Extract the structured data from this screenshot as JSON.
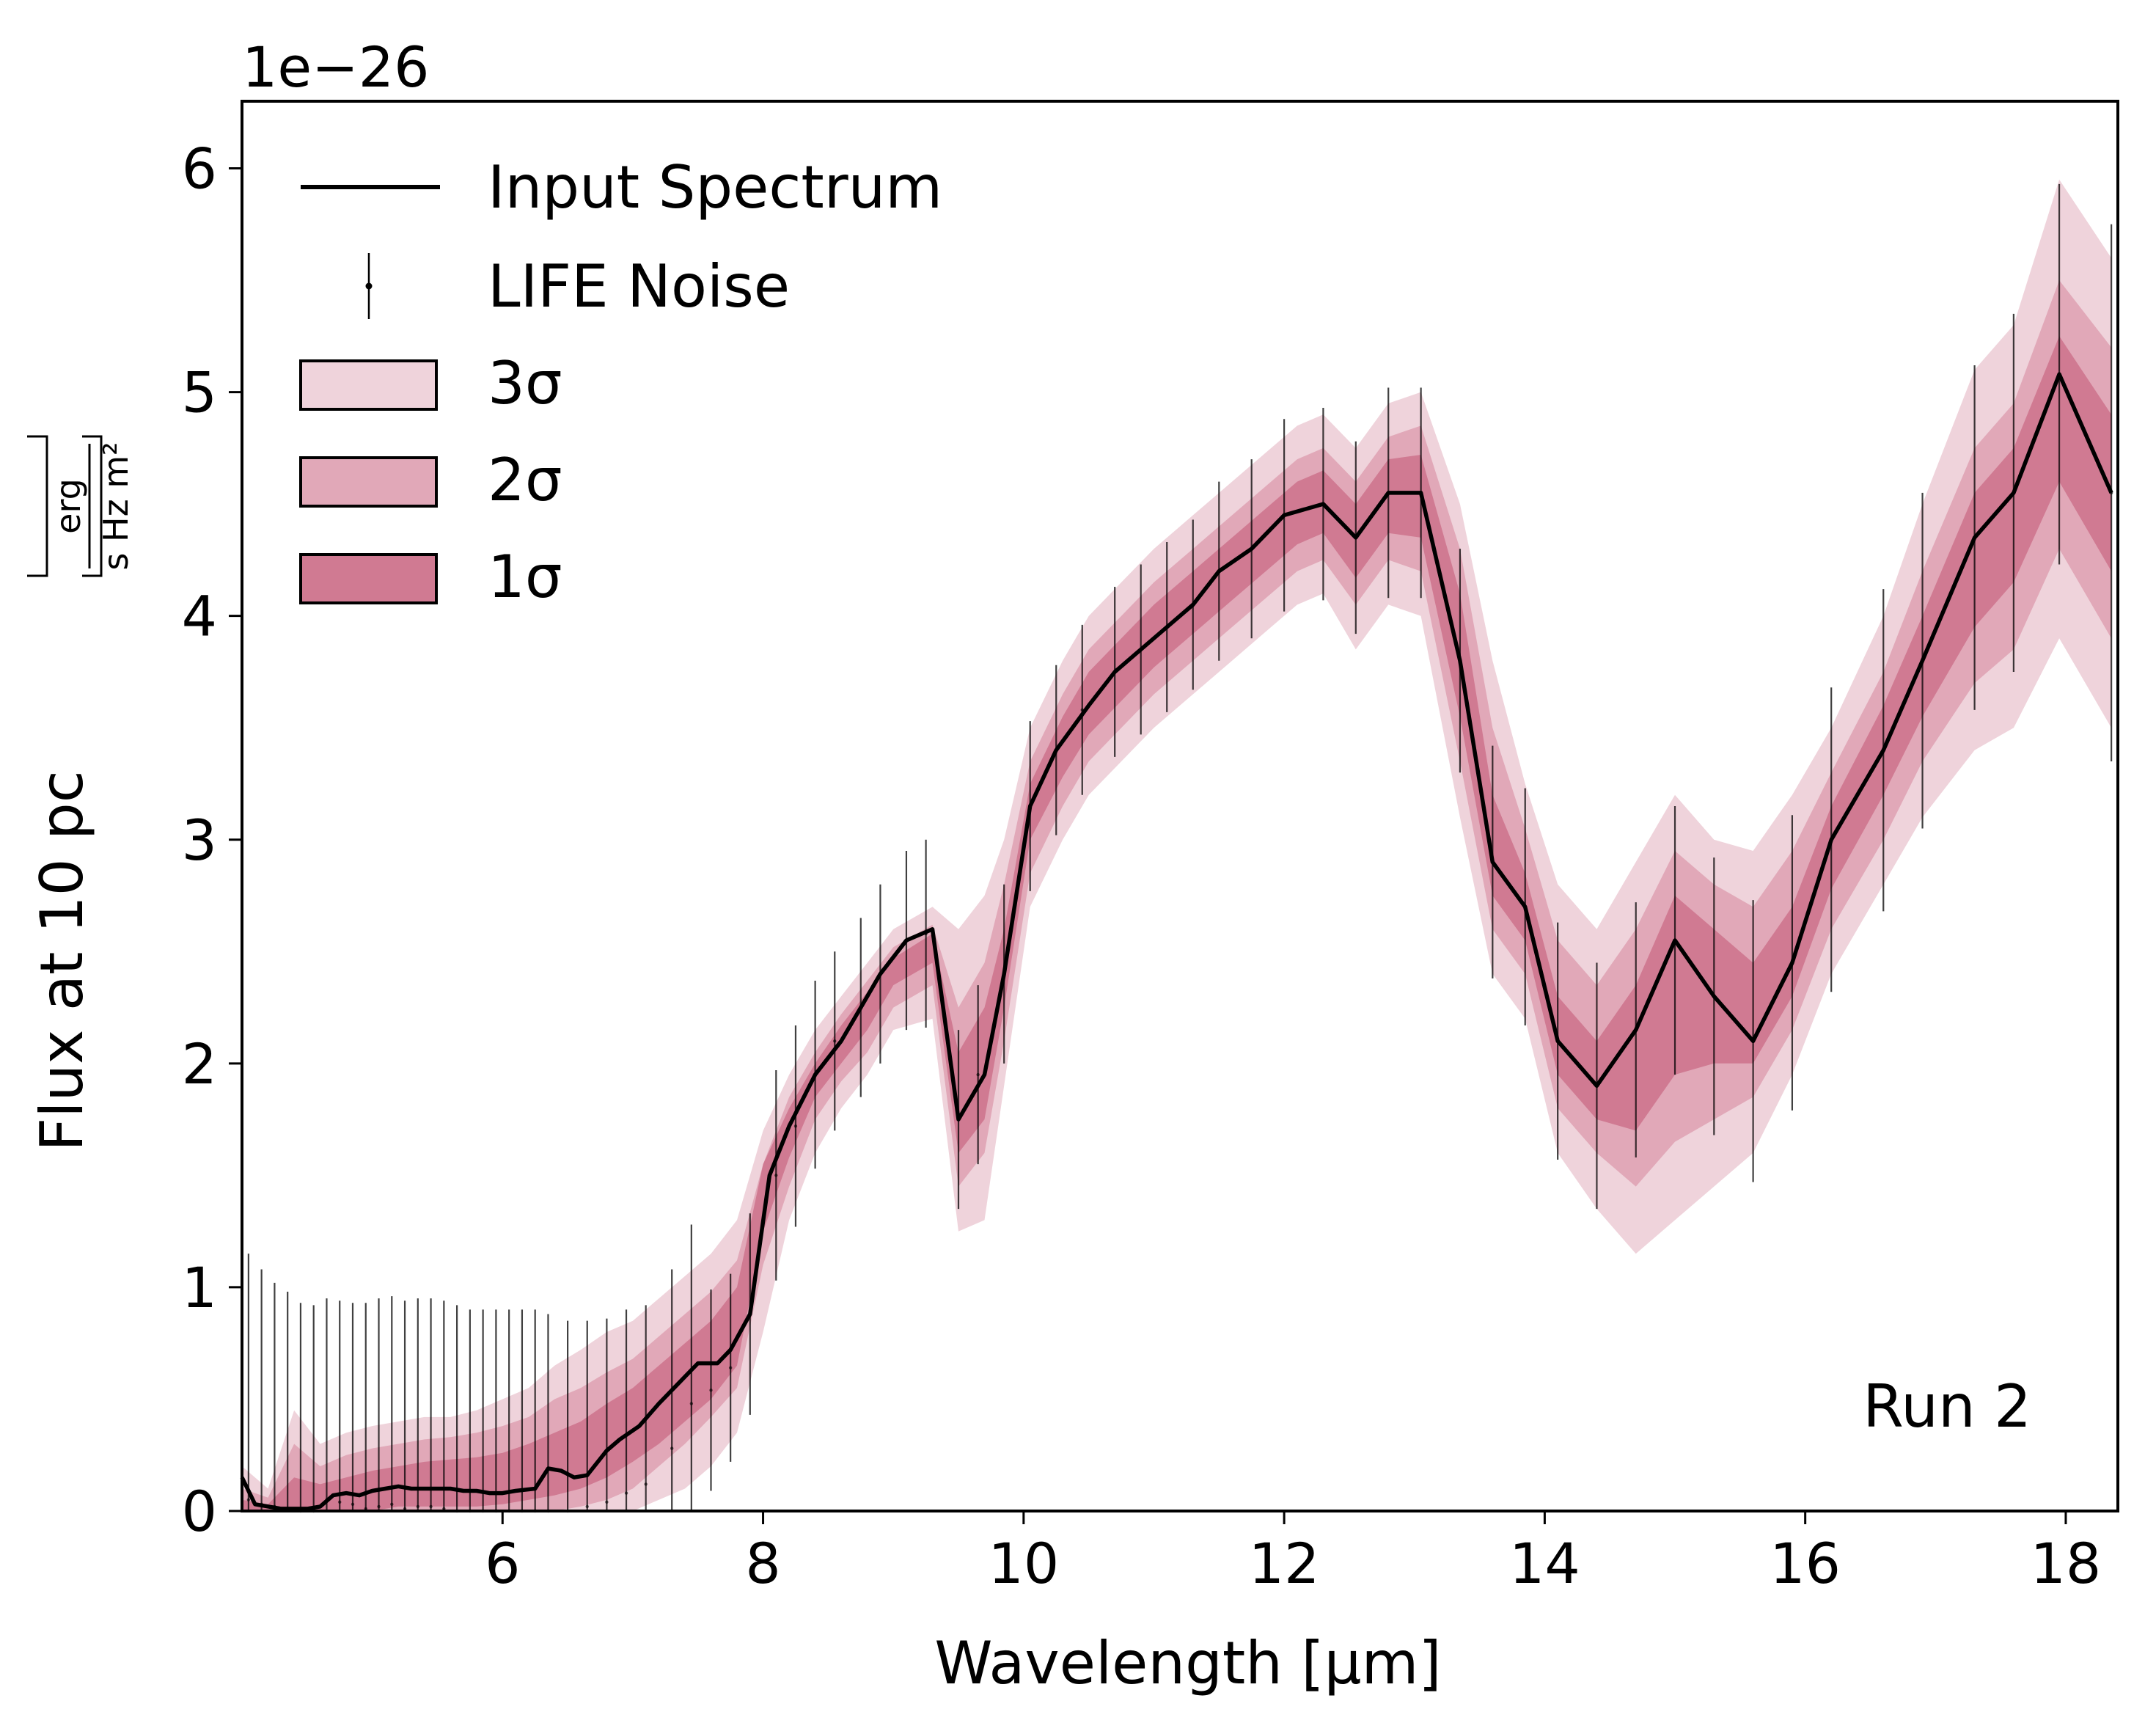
{
  "chart_data": {
    "type": "area",
    "title": "",
    "xlabel": "Wavelength [μm]",
    "ylabel": "Flux at 10 pc",
    "ylabel_unit": {
      "numerator": "erg",
      "denominator": "s Hz m²"
    },
    "offset_text": "1e−26",
    "y_multiplier": 1e-26,
    "xlim": [
      4.0,
      18.4
    ],
    "ylim": [
      0,
      6.3
    ],
    "x_ticks": [
      6,
      8,
      10,
      12,
      14,
      16,
      18
    ],
    "x_tick_labels": [
      "6",
      "8",
      "10",
      "12",
      "14",
      "16",
      "18"
    ],
    "y_ticks": [
      0,
      1,
      2,
      3,
      4,
      5,
      6
    ],
    "y_tick_labels": [
      "0",
      "1",
      "2",
      "3",
      "4",
      "5",
      "6"
    ],
    "grid": false,
    "legend_position": "top-left",
    "annotation": "Run 2",
    "colors": {
      "line": "#000000",
      "noise": "#000000",
      "sigma3": "#efd3db",
      "sigma2": "#e1a8b8",
      "sigma1": "#d07a92"
    },
    "series": [
      {
        "name": "Input Spectrum",
        "kind": "line",
        "x": [
          4.0,
          4.1,
          4.3,
          4.5,
          4.6,
          4.7,
          4.8,
          4.9,
          5.0,
          5.1,
          5.2,
          5.3,
          5.4,
          5.5,
          5.6,
          5.7,
          5.8,
          5.9,
          6.0,
          6.1,
          6.25,
          6.35,
          6.45,
          6.55,
          6.65,
          6.8,
          6.9,
          7.05,
          7.2,
          7.35,
          7.5,
          7.65,
          7.75,
          7.9,
          8.05,
          8.2,
          8.4,
          8.6,
          8.75,
          8.9,
          9.1,
          9.3,
          9.5,
          9.7,
          9.85,
          10.05,
          10.25,
          10.5,
          10.7,
          10.9,
          11.1,
          11.3,
          11.5,
          11.75,
          12.0,
          12.3,
          12.55,
          12.8,
          13.05,
          13.35,
          13.6,
          13.85,
          14.1,
          14.4,
          14.7,
          15.0,
          15.3,
          15.6,
          15.9,
          16.2,
          16.6,
          16.9,
          17.3,
          17.6,
          17.95,
          18.35
        ],
        "y": [
          0.15,
          0.03,
          0.01,
          0.01,
          0.02,
          0.07,
          0.08,
          0.07,
          0.09,
          0.1,
          0.11,
          0.1,
          0.1,
          0.1,
          0.1,
          0.09,
          0.09,
          0.08,
          0.08,
          0.09,
          0.1,
          0.19,
          0.18,
          0.15,
          0.16,
          0.27,
          0.32,
          0.38,
          0.48,
          0.57,
          0.66,
          0.66,
          0.72,
          0.88,
          1.5,
          1.72,
          1.95,
          2.1,
          2.25,
          2.4,
          2.55,
          2.6,
          1.75,
          1.95,
          2.4,
          3.15,
          3.4,
          3.6,
          3.75,
          3.85,
          3.95,
          4.05,
          4.2,
          4.3,
          4.45,
          4.5,
          4.35,
          4.55,
          4.55,
          3.8,
          2.9,
          2.7,
          2.1,
          1.9,
          2.15,
          2.55,
          2.3,
          2.1,
          2.45,
          3.0,
          3.4,
          3.8,
          4.35,
          4.55,
          5.08,
          4.55
        ]
      },
      {
        "name": "LIFE Noise",
        "kind": "errorbar",
        "x": [
          4.05,
          4.15,
          4.25,
          4.35,
          4.45,
          4.55,
          4.65,
          4.75,
          4.85,
          4.95,
          5.05,
          5.15,
          5.25,
          5.35,
          5.45,
          5.55,
          5.65,
          5.75,
          5.85,
          5.95,
          6.05,
          6.15,
          6.25,
          6.35,
          6.5,
          6.65,
          6.8,
          6.95,
          7.1,
          7.3,
          7.45,
          7.6,
          7.75,
          7.9,
          8.1,
          8.25,
          8.4,
          8.55,
          8.75,
          8.9,
          9.1,
          9.25,
          9.5,
          9.65,
          9.85,
          10.05,
          10.25,
          10.45,
          10.7,
          10.9,
          11.1,
          11.3,
          11.5,
          11.75,
          12.0,
          12.3,
          12.55,
          12.8,
          13.05,
          13.35,
          13.6,
          13.85,
          14.1,
          14.4,
          14.7,
          15.0,
          15.3,
          15.6,
          15.9,
          16.2,
          16.6,
          16.9,
          17.3,
          17.6,
          17.95,
          18.35
        ],
        "y": [
          0.05,
          0.03,
          0.02,
          0.01,
          0.0,
          0.0,
          0.05,
          0.04,
          0.03,
          0.01,
          0.02,
          0.03,
          0.01,
          0.02,
          0.02,
          0.01,
          0.0,
          0.0,
          0.0,
          0.0,
          0.0,
          0.0,
          0.0,
          0.0,
          0.0,
          0.02,
          0.04,
          0.08,
          0.12,
          0.28,
          0.48,
          0.54,
          0.64,
          0.88,
          1.5,
          1.72,
          1.95,
          2.1,
          2.25,
          2.4,
          2.55,
          2.58,
          1.75,
          1.95,
          2.4,
          3.15,
          3.4,
          3.58,
          3.75,
          3.85,
          3.95,
          4.05,
          4.2,
          4.3,
          4.45,
          4.5,
          4.35,
          4.55,
          4.55,
          3.8,
          2.9,
          2.7,
          2.1,
          1.9,
          2.15,
          2.55,
          2.3,
          2.1,
          2.45,
          3.0,
          3.4,
          3.8,
          4.35,
          4.55,
          5.08,
          4.55
        ],
        "err": [
          1.1,
          1.05,
          1.0,
          0.97,
          0.93,
          0.92,
          0.9,
          0.9,
          0.9,
          0.92,
          0.93,
          0.93,
          0.93,
          0.93,
          0.93,
          0.93,
          0.92,
          0.9,
          0.9,
          0.9,
          0.9,
          0.9,
          0.9,
          0.88,
          0.85,
          0.83,
          0.82,
          0.82,
          0.8,
          0.8,
          0.8,
          0.45,
          0.42,
          0.45,
          0.47,
          0.45,
          0.42,
          0.4,
          0.4,
          0.4,
          0.4,
          0.42,
          0.4,
          0.4,
          0.4,
          0.38,
          0.38,
          0.38,
          0.38,
          0.38,
          0.38,
          0.38,
          0.4,
          0.4,
          0.43,
          0.43,
          0.43,
          0.47,
          0.47,
          0.5,
          0.52,
          0.53,
          0.53,
          0.55,
          0.57,
          0.6,
          0.62,
          0.63,
          0.66,
          0.68,
          0.72,
          0.75,
          0.77,
          0.8,
          0.85,
          1.2
        ]
      },
      {
        "name": "3σ",
        "kind": "band",
        "x": [
          4.0,
          4.2,
          4.4,
          4.6,
          4.8,
          5.0,
          5.2,
          5.4,
          5.6,
          5.8,
          6.0,
          6.2,
          6.4,
          6.6,
          6.8,
          7.0,
          7.2,
          7.4,
          7.6,
          7.8,
          8.0,
          8.2,
          8.4,
          8.6,
          8.8,
          9.0,
          9.3,
          9.5,
          9.7,
          9.85,
          10.05,
          10.3,
          10.5,
          10.75,
          11.0,
          11.3,
          11.6,
          11.9,
          12.1,
          12.3,
          12.55,
          12.8,
          13.05,
          13.35,
          13.6,
          13.85,
          14.1,
          14.4,
          14.7,
          15.0,
          15.3,
          15.6,
          15.9,
          16.2,
          16.6,
          16.9,
          17.3,
          17.6,
          17.95,
          18.35
        ],
        "lower": [
          0.0,
          0.0,
          0.0,
          0.0,
          0.0,
          0.0,
          0.0,
          0.0,
          0.0,
          0.0,
          0.0,
          0.0,
          0.0,
          0.0,
          0.0,
          0.0,
          0.05,
          0.1,
          0.2,
          0.35,
          0.8,
          1.3,
          1.6,
          1.8,
          1.95,
          2.15,
          2.2,
          1.25,
          1.3,
          1.9,
          2.7,
          3.0,
          3.2,
          3.35,
          3.5,
          3.65,
          3.8,
          3.95,
          4.05,
          4.1,
          3.85,
          4.05,
          4.0,
          3.1,
          2.4,
          2.2,
          1.6,
          1.35,
          1.15,
          1.3,
          1.45,
          1.6,
          1.95,
          2.4,
          2.8,
          3.1,
          3.4,
          3.5,
          3.9,
          3.5
        ],
        "upper": [
          0.2,
          0.1,
          0.45,
          0.3,
          0.35,
          0.38,
          0.4,
          0.42,
          0.42,
          0.45,
          0.5,
          0.55,
          0.65,
          0.72,
          0.8,
          0.85,
          0.95,
          1.05,
          1.15,
          1.3,
          1.7,
          1.95,
          2.15,
          2.3,
          2.45,
          2.6,
          2.7,
          2.6,
          2.75,
          3.0,
          3.5,
          3.8,
          4.0,
          4.15,
          4.3,
          4.45,
          4.6,
          4.75,
          4.85,
          4.9,
          4.75,
          4.95,
          5.0,
          4.5,
          3.8,
          3.25,
          2.8,
          2.6,
          2.9,
          3.2,
          3.0,
          2.95,
          3.2,
          3.5,
          4.0,
          4.5,
          5.1,
          5.3,
          5.95,
          5.6
        ]
      },
      {
        "name": "2σ",
        "kind": "band",
        "x": [
          4.0,
          4.2,
          4.4,
          4.6,
          4.8,
          5.0,
          5.2,
          5.4,
          5.6,
          5.8,
          6.0,
          6.2,
          6.4,
          6.6,
          6.8,
          7.0,
          7.2,
          7.4,
          7.6,
          7.8,
          8.0,
          8.2,
          8.4,
          8.6,
          8.8,
          9.0,
          9.3,
          9.5,
          9.7,
          9.85,
          10.05,
          10.3,
          10.5,
          10.75,
          11.0,
          11.3,
          11.6,
          11.9,
          12.1,
          12.3,
          12.55,
          12.8,
          13.05,
          13.35,
          13.6,
          13.85,
          14.1,
          14.4,
          14.7,
          15.0,
          15.3,
          15.6,
          15.9,
          16.2,
          16.6,
          16.9,
          17.3,
          17.6,
          17.95,
          18.35
        ],
        "lower": [
          0.0,
          0.0,
          0.0,
          0.0,
          0.0,
          0.0,
          0.0,
          0.0,
          0.0,
          0.0,
          0.0,
          0.0,
          0.0,
          0.02,
          0.05,
          0.1,
          0.2,
          0.3,
          0.42,
          0.55,
          1.1,
          1.45,
          1.75,
          1.92,
          2.05,
          2.25,
          2.35,
          1.45,
          1.6,
          2.1,
          2.85,
          3.15,
          3.35,
          3.5,
          3.65,
          3.8,
          3.95,
          4.1,
          4.2,
          4.25,
          4.05,
          4.25,
          4.2,
          3.35,
          2.6,
          2.4,
          1.8,
          1.6,
          1.45,
          1.65,
          1.75,
          1.85,
          2.15,
          2.6,
          3.0,
          3.35,
          3.7,
          3.85,
          4.3,
          3.9
        ],
        "upper": [
          0.1,
          0.06,
          0.3,
          0.2,
          0.25,
          0.28,
          0.3,
          0.32,
          0.33,
          0.35,
          0.38,
          0.42,
          0.5,
          0.55,
          0.62,
          0.68,
          0.78,
          0.88,
          0.98,
          1.12,
          1.55,
          1.85,
          2.05,
          2.22,
          2.37,
          2.52,
          2.62,
          2.25,
          2.45,
          2.8,
          3.35,
          3.65,
          3.85,
          4.0,
          4.15,
          4.3,
          4.45,
          4.6,
          4.7,
          4.75,
          4.6,
          4.8,
          4.85,
          4.3,
          3.5,
          3.05,
          2.55,
          2.35,
          2.6,
          2.95,
          2.8,
          2.7,
          2.95,
          3.3,
          3.75,
          4.2,
          4.75,
          4.95,
          5.5,
          5.2
        ]
      },
      {
        "name": "1σ",
        "kind": "band",
        "x": [
          4.0,
          4.2,
          4.4,
          4.6,
          4.8,
          5.0,
          5.2,
          5.4,
          5.6,
          5.8,
          6.0,
          6.2,
          6.4,
          6.6,
          6.8,
          7.0,
          7.2,
          7.4,
          7.6,
          7.8,
          8.0,
          8.2,
          8.4,
          8.6,
          8.8,
          9.0,
          9.3,
          9.5,
          9.7,
          9.85,
          10.05,
          10.3,
          10.5,
          10.75,
          11.0,
          11.3,
          11.6,
          11.9,
          12.1,
          12.3,
          12.55,
          12.8,
          13.05,
          13.35,
          13.6,
          13.85,
          14.1,
          14.4,
          14.7,
          15.0,
          15.3,
          15.6,
          15.9,
          16.2,
          16.6,
          16.9,
          17.3,
          17.6,
          17.95,
          18.35
        ],
        "lower": [
          0.0,
          0.0,
          0.0,
          0.0,
          0.0,
          0.0,
          0.02,
          0.02,
          0.02,
          0.02,
          0.03,
          0.05,
          0.07,
          0.1,
          0.15,
          0.22,
          0.3,
          0.4,
          0.5,
          0.65,
          1.25,
          1.58,
          1.85,
          2.0,
          2.15,
          2.35,
          2.45,
          1.6,
          1.75,
          2.25,
          3.0,
          3.28,
          3.47,
          3.62,
          3.77,
          3.92,
          4.07,
          4.22,
          4.32,
          4.37,
          4.17,
          4.37,
          4.35,
          3.55,
          2.75,
          2.55,
          1.95,
          1.75,
          1.7,
          1.95,
          2.0,
          2.0,
          2.3,
          2.78,
          3.2,
          3.55,
          3.95,
          4.15,
          4.6,
          4.2
        ],
        "upper": [
          0.05,
          0.03,
          0.15,
          0.12,
          0.15,
          0.18,
          0.2,
          0.22,
          0.23,
          0.24,
          0.26,
          0.3,
          0.35,
          0.4,
          0.48,
          0.55,
          0.65,
          0.75,
          0.85,
          1.0,
          1.55,
          1.8,
          2.0,
          2.17,
          2.32,
          2.47,
          2.58,
          2.05,
          2.25,
          2.6,
          3.25,
          3.55,
          3.75,
          3.9,
          4.05,
          4.2,
          4.35,
          4.5,
          4.6,
          4.65,
          4.5,
          4.7,
          4.72,
          4.1,
          3.2,
          2.85,
          2.3,
          2.1,
          2.35,
          2.75,
          2.6,
          2.45,
          2.7,
          3.15,
          3.6,
          4.0,
          4.55,
          4.75,
          5.25,
          4.9
        ]
      }
    ],
    "legend": [
      "Input Spectrum",
      "LIFE Noise",
      "3σ",
      "2σ",
      "1σ"
    ]
  }
}
